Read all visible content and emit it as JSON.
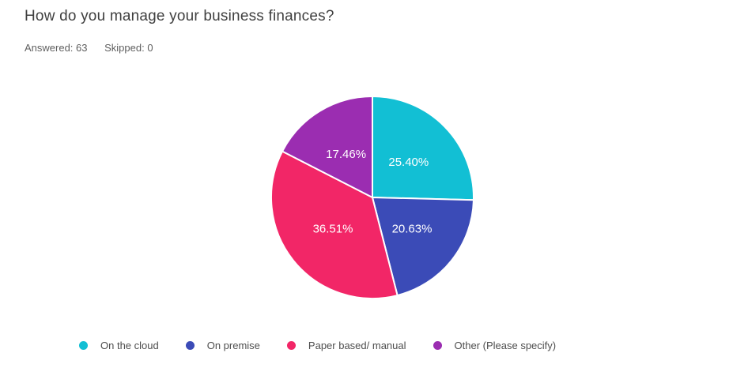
{
  "header": {
    "title": "How do you manage your business finances?",
    "answered_label": "Answered: 63",
    "skipped_label": "Skipped: 0"
  },
  "chart_data": {
    "type": "pie",
    "title": "How do you manage your business finances?",
    "answered": 63,
    "skipped": 0,
    "start_angle_deg": 0,
    "direction": "clockwise",
    "label_radius_ratio": 0.5,
    "slice_separator_color": "#ffffff",
    "label_text_color": "#ffffff",
    "legend_position": "bottom",
    "slices": [
      {
        "label": "On the cloud",
        "value": 25.4,
        "display": "25.40%",
        "color": "#12bfd4"
      },
      {
        "label": "On premise",
        "value": 20.63,
        "display": "20.63%",
        "color": "#3b4bb7"
      },
      {
        "label": "Paper based/ manual",
        "value": 36.51,
        "display": "36.51%",
        "color": "#f22667"
      },
      {
        "label": "Other (Please specify)",
        "value": 17.46,
        "display": "17.46%",
        "color": "#9b2db1"
      }
    ]
  }
}
